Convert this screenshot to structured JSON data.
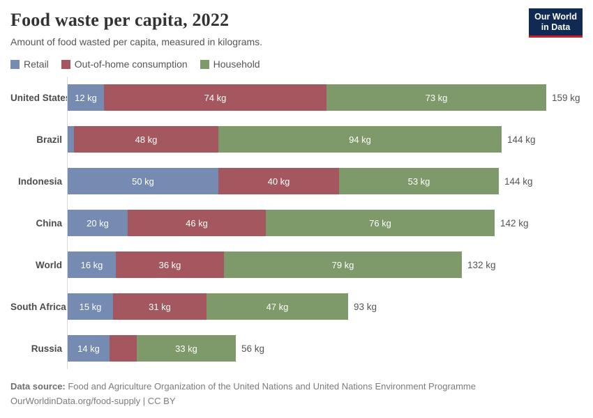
{
  "header": {
    "title": "Food waste per capita, 2022",
    "subtitle": "Amount of food wasted per capita, measured in kilograms."
  },
  "logo": {
    "line1": "Our World",
    "line2": "in Data",
    "bg_color": "#102a54",
    "accent_color": "#cb2127"
  },
  "chart_data": {
    "type": "bar",
    "orientation": "horizontal",
    "stacked": true,
    "title": "Food waste per capita, 2022",
    "xlabel": "",
    "ylabel": "",
    "xlim": [
      0,
      159
    ],
    "grid": false,
    "legend_position": "top",
    "unit": "kg",
    "categories": [
      "United States",
      "Brazil",
      "Indonesia",
      "China",
      "World",
      "South Africa",
      "Russia"
    ],
    "series": [
      {
        "name": "Retail",
        "key": "retail",
        "color": "#758bb2",
        "values": [
          12,
          2,
          50,
          20,
          16,
          15,
          14
        ],
        "labels": [
          "12 kg",
          "",
          "50 kg",
          "20 kg",
          "16 kg",
          "15 kg",
          "14 kg"
        ]
      },
      {
        "name": "Out-of-home consumption",
        "key": "out-of-home-consumption",
        "color": "#a4575f",
        "values": [
          74,
          48,
          40,
          46,
          36,
          31,
          9
        ],
        "labels": [
          "74 kg",
          "48 kg",
          "40 kg",
          "46 kg",
          "36 kg",
          "31 kg",
          ""
        ]
      },
      {
        "name": "Household",
        "key": "household",
        "color": "#7f9a6a",
        "values": [
          73,
          94,
          53,
          76,
          79,
          47,
          33
        ],
        "labels": [
          "73 kg",
          "94 kg",
          "53 kg",
          "76 kg",
          "79 kg",
          "47 kg",
          "33 kg"
        ]
      }
    ],
    "totals": [
      159,
      144,
      144,
      142,
      132,
      93,
      56
    ],
    "total_labels": [
      "159 kg",
      "144 kg",
      "144 kg",
      "142 kg",
      "132 kg",
      "93 kg",
      "56 kg"
    ]
  },
  "footer": {
    "datasource_label": "Data source:",
    "datasource_text": " Food and Agriculture Organization of the United Nations and United Nations Environment Programme",
    "line2": "OurWorldinData.org/food-supply | CC BY"
  }
}
